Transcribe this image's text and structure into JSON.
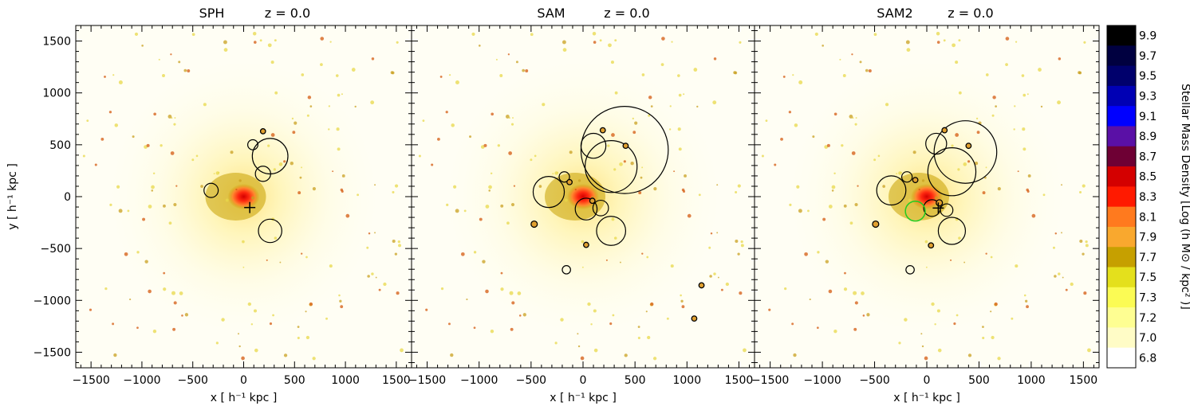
{
  "chart_data": {
    "type": "heatmap",
    "panels": [
      {
        "title_left": "SPH",
        "title_right": "z  =  0.0",
        "xlabel": "x [ h⁻¹ kpc ]",
        "ylabel": "y [ h⁻¹ kpc ]",
        "circles": [
          {
            "x": 190,
            "y": 630,
            "r": 25
          },
          {
            "x": 90,
            "y": 500,
            "r": 50
          },
          {
            "x": 260,
            "y": 390,
            "r": 175
          },
          {
            "x": 190,
            "y": 220,
            "r": 75
          },
          {
            "x": -320,
            "y": 60,
            "r": 70
          },
          {
            "x": 260,
            "y": -330,
            "r": 115
          }
        ],
        "crosses": [
          {
            "x": 60,
            "y": -105
          }
        ],
        "green_circles": []
      },
      {
        "title_left": "SAM",
        "title_right": "z  =  0.0",
        "xlabel": "x [ h⁻¹ kpc ]",
        "ylabel": "",
        "circles": [
          {
            "x": 400,
            "y": 450,
            "r": 420
          },
          {
            "x": 270,
            "y": 290,
            "r": 250
          },
          {
            "x": 100,
            "y": 490,
            "r": 120
          },
          {
            "x": 190,
            "y": 640,
            "r": 25
          },
          {
            "x": 410,
            "y": 490,
            "r": 25
          },
          {
            "x": -330,
            "y": 45,
            "r": 150
          },
          {
            "x": -180,
            "y": 190,
            "r": 50
          },
          {
            "x": -130,
            "y": 140,
            "r": 25
          },
          {
            "x": 30,
            "y": -120,
            "r": 105
          },
          {
            "x": 170,
            "y": -110,
            "r": 75
          },
          {
            "x": 90,
            "y": -40,
            "r": 25
          },
          {
            "x": 270,
            "y": -330,
            "r": 140
          },
          {
            "x": 30,
            "y": -465,
            "r": 25
          },
          {
            "x": -470,
            "y": -265,
            "r": 30
          },
          {
            "x": -160,
            "y": -705,
            "r": 40
          },
          {
            "x": 1140,
            "y": -855,
            "r": 25
          },
          {
            "x": 1070,
            "y": -1175,
            "r": 25
          }
        ],
        "crosses": [],
        "green_circles": []
      },
      {
        "title_left": "SAM2",
        "title_right": "z  =  0.0",
        "xlabel": "x [ h⁻¹ kpc ]",
        "ylabel": "",
        "circles": [
          {
            "x": 370,
            "y": 430,
            "r": 300
          },
          {
            "x": 240,
            "y": 240,
            "r": 230
          },
          {
            "x": 90,
            "y": 510,
            "r": 100
          },
          {
            "x": 170,
            "y": 640,
            "r": 25
          },
          {
            "x": 400,
            "y": 490,
            "r": 25
          },
          {
            "x": -340,
            "y": 60,
            "r": 140
          },
          {
            "x": -190,
            "y": 190,
            "r": 50
          },
          {
            "x": -110,
            "y": 160,
            "r": 25
          },
          {
            "x": 50,
            "y": -110,
            "r": 80
          },
          {
            "x": 190,
            "y": -130,
            "r": 60
          },
          {
            "x": 120,
            "y": -60,
            "r": 30
          },
          {
            "x": 240,
            "y": -330,
            "r": 130
          },
          {
            "x": 40,
            "y": -470,
            "r": 25
          },
          {
            "x": -490,
            "y": -265,
            "r": 30
          },
          {
            "x": -160,
            "y": -705,
            "r": 40
          }
        ],
        "crosses": [
          {
            "x": 110,
            "y": -110
          }
        ],
        "green_circles": [
          {
            "x": -110,
            "y": -140,
            "r": 95
          }
        ]
      }
    ],
    "xlim": [
      -1650,
      1650
    ],
    "ylim": [
      -1650,
      1650
    ],
    "x_ticks": [
      -1500,
      -1000,
      -500,
      0,
      500,
      1000,
      1500
    ],
    "y_ticks": [
      -1500,
      -1000,
      -500,
      0,
      500,
      1000,
      1500
    ],
    "colorbar": {
      "label": "Stellar Mass Density [Log (h M⊙ / kpc² )]",
      "levels": [
        "9.9",
        "9.7",
        "9.5",
        "9.3",
        "9.1",
        "8.9",
        "8.7",
        "8.5",
        "8.3",
        "8.1",
        "7.9",
        "7.7",
        "7.5",
        "7.3",
        "7.2",
        "7.0",
        "6.8"
      ],
      "colors": [
        "#000000",
        "#000040",
        "#00006c",
        "#0000b4",
        "#0000ff",
        "#5a10a6",
        "#6e0034",
        "#d40000",
        "#ff1a00",
        "#ff7a1e",
        "#f9a82e",
        "#c6a000",
        "#e4e01c",
        "#fbfb54",
        "#fefe92",
        "#fffcc6",
        "#ffffff"
      ]
    }
  }
}
